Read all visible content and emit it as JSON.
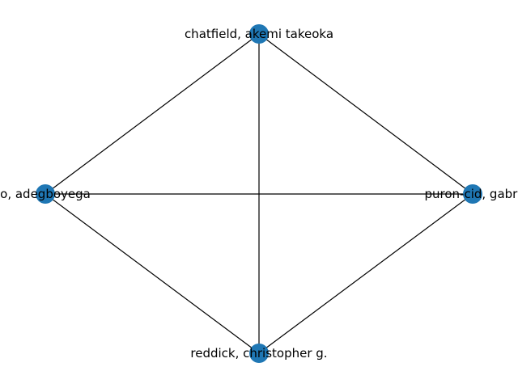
{
  "graph": {
    "node_color": "#1f77b4",
    "edge_color": "#000000",
    "label_color": "#000000",
    "background": "#ffffff",
    "nodes": [
      {
        "id": "chatfield",
        "label": "chatfield, akemi takeoka"
      },
      {
        "id": "adegboyega",
        "label": "o, adegboyega"
      },
      {
        "id": "puron",
        "label": "puron-cid, gabri"
      },
      {
        "id": "reddick",
        "label": "reddick, christopher g."
      }
    ],
    "edges": [
      {
        "source": "chatfield",
        "target": "adegboyega"
      },
      {
        "source": "chatfield",
        "target": "puron"
      },
      {
        "source": "chatfield",
        "target": "reddick"
      },
      {
        "source": "adegboyega",
        "target": "puron"
      },
      {
        "source": "adegboyega",
        "target": "reddick"
      },
      {
        "source": "puron",
        "target": "reddick"
      }
    ]
  }
}
